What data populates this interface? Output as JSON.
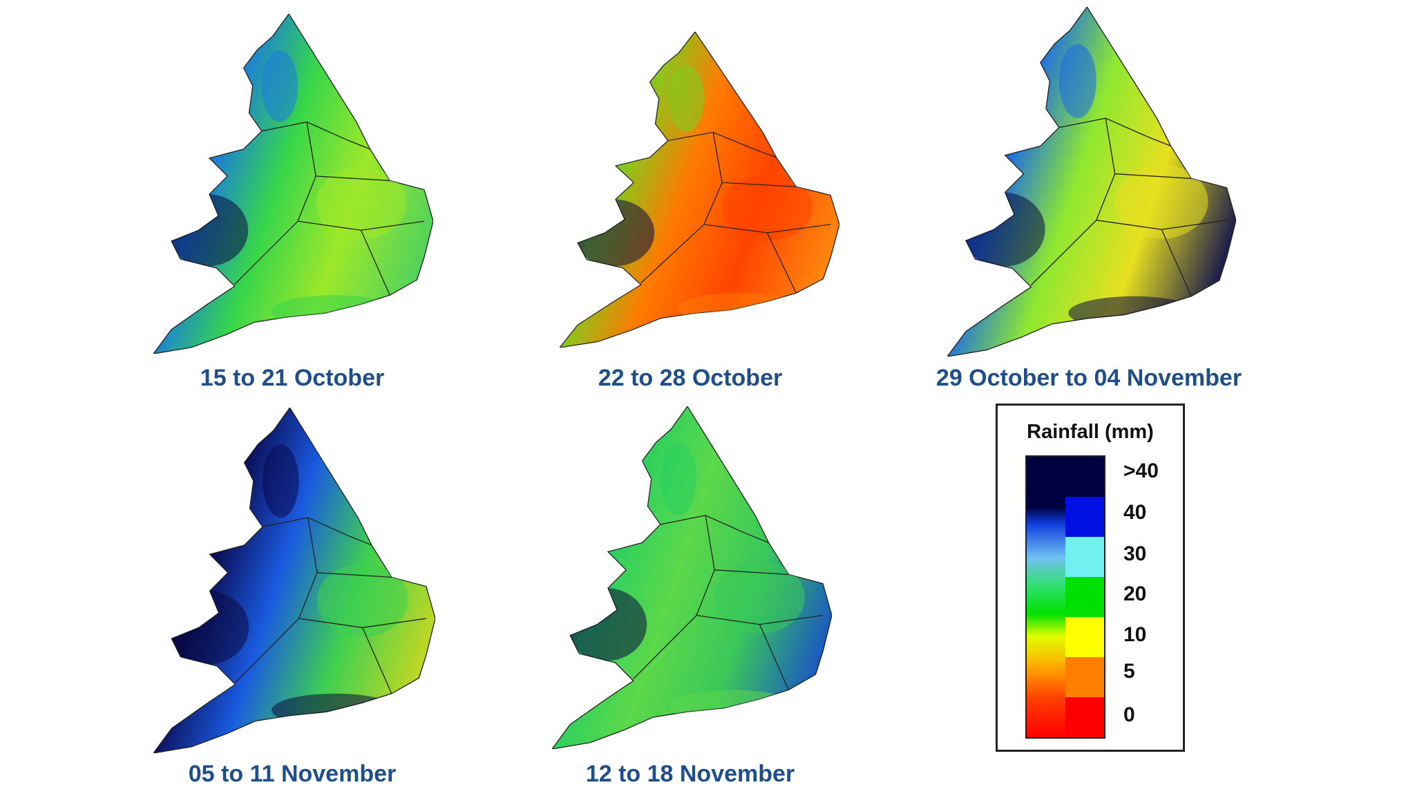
{
  "maps": [
    {
      "caption": "15 to 21 October",
      "colors": [
        "#0a0a40",
        "#1a7ae0",
        "#37d64a",
        "#9ee82a",
        "#4cd060"
      ]
    },
    {
      "caption": "22 to 28 October",
      "colors": [
        "#0a0a40",
        "#7ad020",
        "#ff7a00",
        "#ff4400",
        "#ff8c10"
      ]
    },
    {
      "caption": "29 October to 04 November",
      "colors": [
        "#0a0a40",
        "#1a6ae8",
        "#8ee830",
        "#e8e020",
        "#0a0a50"
      ]
    },
    {
      "caption": "05 to 11 November",
      "colors": [
        "#0a0a40",
        "#0a0a50",
        "#1a5ae0",
        "#3ed050",
        "#ccd820"
      ]
    },
    {
      "caption": "12 to 18 November",
      "colors": [
        "#0a0a40",
        "#2ad060",
        "#5cd84a",
        "#3ac85a",
        "#1a50c8"
      ]
    }
  ],
  "legend": {
    "title": "Rainfall (mm)",
    "ticks": [
      ">40",
      "40",
      "30",
      "20",
      "10",
      "5",
      "0"
    ],
    "colors": [
      "#000040",
      "#0010e0",
      "#70f0f0",
      "#00e000",
      "#ffff00",
      "#ff8000",
      "#ff0000"
    ]
  }
}
